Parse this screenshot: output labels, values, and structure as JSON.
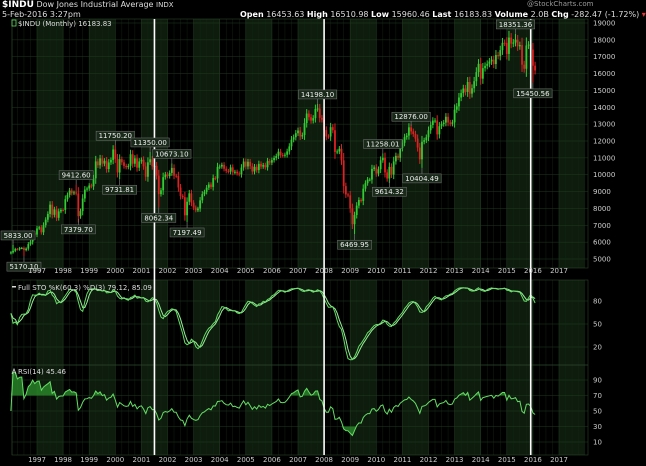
{
  "header": {
    "symbol": "$INDU",
    "name": "Dow Jones Industrial Average",
    "exchange": "INDX",
    "datetime": "5-Feb-2016 3:27pm",
    "watermark": "@StockCharts.com",
    "open_label": "Open",
    "open": "16453.63",
    "high_label": "High",
    "high": "16510.98",
    "low_label": "Low",
    "low": "15960.46",
    "last_label": "Last",
    "last": "16183.83",
    "volume_label": "Volume",
    "volume": "2.0B",
    "chg_label": "Chg",
    "chg": "-282.47 (-1.72%)"
  },
  "colors": {
    "up": "#33cc33",
    "down": "#dd2222",
    "indicator": "#66dd66",
    "band": "#0e1c0e",
    "grid": "#1f3a1f",
    "marker_lines": "#ffffff"
  },
  "chart_data": [
    {
      "type": "ohlc",
      "legend": "$INDU (Monthly) 16183.83",
      "period": "monthly",
      "start": "1996-01",
      "closes": [
        5395,
        5486,
        5587,
        5569,
        5643,
        5655,
        5529,
        5616,
        5882,
        6029,
        6522,
        6448,
        6813,
        6878,
        6583,
        7009,
        7331,
        7673,
        8223,
        7622,
        7945,
        7442,
        7823,
        7908,
        7907,
        8546,
        8800,
        9063,
        8900,
        8952,
        8883,
        7539,
        7843,
        8592,
        9117,
        9181,
        9359,
        9307,
        9786,
        10789,
        10560,
        10971,
        10655,
        10829,
        10337,
        10729,
        10878,
        11497,
        10941,
        10128,
        10922,
        10734,
        10522,
        10448,
        10522,
        11215,
        10651,
        10971,
        10415,
        10788,
        10887,
        10495,
        9879,
        10735,
        10912,
        10502,
        10523,
        9950,
        8848,
        9075,
        9852,
        10022,
        9920,
        10106,
        10404,
        9946,
        9925,
        9243,
        8737,
        8664,
        7592,
        8397,
        8896,
        8342,
        8054,
        7891,
        7992,
        8480,
        8850,
        8985,
        9234,
        9416,
        9275,
        9801,
        9782,
        10454,
        10488,
        10584,
        10358,
        10226,
        10188,
        10435,
        10140,
        10174,
        10080,
        10027,
        10428,
        10783,
        10490,
        10766,
        10504,
        10193,
        10467,
        10275,
        10641,
        10482,
        10569,
        10440,
        10806,
        10718,
        10865,
        10993,
        11109,
        11367,
        11168,
        11150,
        11186,
        11381,
        11679,
        12081,
        12222,
        12463,
        12622,
        12269,
        12354,
        13063,
        13628,
        13409,
        13212,
        13358,
        13896,
        13930,
        13372,
        13265,
        12650,
        12266,
        12263,
        12820,
        12638,
        11350,
        11378,
        11544,
        10851,
        9325,
        8829,
        8776,
        8001,
        7063,
        7609,
        8168,
        8500,
        8447,
        9172,
        9496,
        9712,
        9713,
        10345,
        10428,
        10067,
        10325,
        10857,
        11009,
        10137,
        9774,
        10466,
        10015,
        10788,
        11118,
        11006,
        11578,
        11892,
        12226,
        12320,
        12811,
        12570,
        12414,
        12143,
        11614,
        10913,
        11955,
        12046,
        12218,
        12633,
        12952,
        13212,
        13214,
        12393,
        12880,
        13009,
        13091,
        13437,
        13096,
        13026,
        13104,
        13861,
        14054,
        14579,
        14840,
        15116,
        14910,
        15500,
        14810,
        15130,
        15546,
        16086,
        16577,
        15699,
        16322,
        16458,
        16581,
        16717,
        16827,
        16563,
        17098,
        17043,
        17391,
        17828,
        17823,
        17165,
        18133,
        17776,
        17841,
        18011,
        17620,
        17690,
        16528,
        16285,
        17664,
        17720,
        17425,
        16466,
        16184
      ],
      "annotations": [
        {
          "text": "5833.00",
          "month": 1,
          "value": 5833.0,
          "kind": "high"
        },
        {
          "text": "5170.10",
          "month": 6,
          "value": 5170.1,
          "kind": "low"
        },
        {
          "text": "9412.60",
          "month": 30,
          "value": 9412.6,
          "kind": "high"
        },
        {
          "text": "7379.70",
          "month": 31,
          "value": 7379.7,
          "kind": "low"
        },
        {
          "text": "11750.20",
          "month": 48,
          "value": 11750.2,
          "kind": "high"
        },
        {
          "text": "9731.81",
          "month": 50,
          "value": 9731.81,
          "kind": "low"
        },
        {
          "text": "11350.00",
          "month": 64,
          "value": 11350.0,
          "kind": "high"
        },
        {
          "text": "8062.34",
          "month": 68,
          "value": 8062.34,
          "kind": "low"
        },
        {
          "text": "10673.10",
          "month": 74,
          "value": 10673.1,
          "kind": "high"
        },
        {
          "text": "7197.49",
          "month": 81,
          "value": 7197.49,
          "kind": "low"
        },
        {
          "text": "14198.10",
          "month": 141,
          "value": 14198.1,
          "kind": "high"
        },
        {
          "text": "6469.95",
          "month": 158,
          "value": 6469.95,
          "kind": "low"
        },
        {
          "text": "11258.01",
          "month": 171,
          "value": 11258.01,
          "kind": "high"
        },
        {
          "text": "9614.32",
          "month": 174,
          "value": 9614.32,
          "kind": "low"
        },
        {
          "text": "12876.00",
          "month": 184,
          "value": 12876.0,
          "kind": "high"
        },
        {
          "text": "10404.49",
          "month": 189,
          "value": 10404.49,
          "kind": "low"
        },
        {
          "text": "18351.36",
          "month": 232,
          "value": 18351.36,
          "kind": "high"
        },
        {
          "text": "15450.56",
          "month": 240,
          "value": 15450.56,
          "kind": "low"
        }
      ],
      "marker_lines": [
        "2001-07",
        "2008-01",
        "2015-12"
      ],
      "y_ticks": [
        5000,
        6000,
        7000,
        8000,
        9000,
        10000,
        11000,
        12000,
        13000,
        14000,
        15000,
        16000,
        17000,
        18000,
        19000
      ],
      "ylim": [
        4500,
        19300
      ],
      "x_ticks": [
        "1997",
        "1998",
        "1999",
        "2000",
        "2001",
        "2002",
        "2003",
        "2004",
        "2005",
        "2006",
        "2007",
        "2008",
        "2009",
        "2010",
        "2011",
        "2012",
        "2013",
        "2014",
        "2015",
        "2016",
        "2017"
      ]
    },
    {
      "type": "line",
      "legend": "Full STO %K(60,3) %D(3) 79.12, 85.09",
      "y_ticks": [
        80,
        50,
        20
      ],
      "ylim": [
        0,
        100
      ]
    },
    {
      "type": "area",
      "legend": "RSI(14) 45.46",
      "y_ticks": [
        90,
        70,
        50,
        30,
        10
      ],
      "ylim": [
        0,
        100
      ]
    }
  ]
}
